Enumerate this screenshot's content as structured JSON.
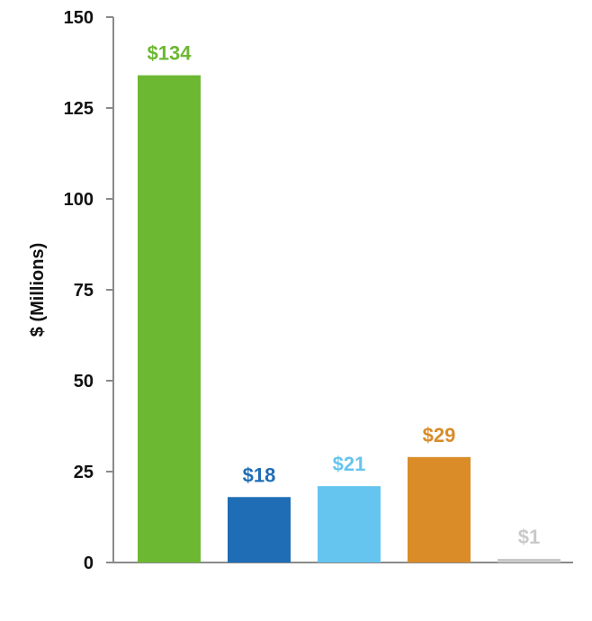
{
  "chart_data": {
    "type": "bar",
    "title": "",
    "xlabel": "",
    "ylabel": "$ (Millions)",
    "ylim": [
      0,
      150
    ],
    "yticks": [
      0,
      25,
      50,
      75,
      100,
      125,
      150
    ],
    "grid": false,
    "categories": [
      "",
      "",
      "",
      "",
      ""
    ],
    "values": [
      134,
      18,
      21,
      29,
      1
    ],
    "data_labels": [
      "$134",
      "$18",
      "$21",
      "$29",
      "$1"
    ],
    "colors": [
      "#6DB833",
      "#1F6DB5",
      "#66C5EE",
      "#D98C28",
      "#C9C9C9"
    ]
  }
}
